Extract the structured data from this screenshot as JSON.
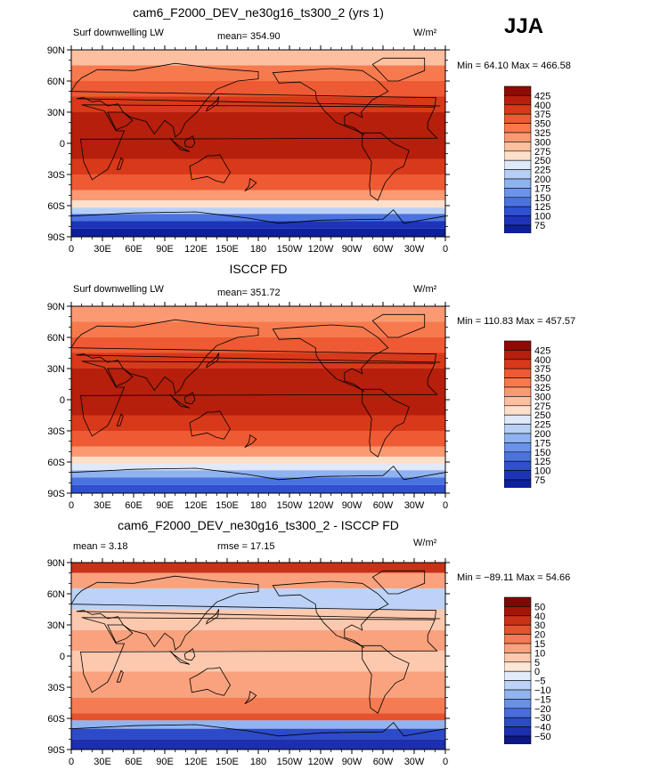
{
  "season": "JJA",
  "units_label": "W/m²",
  "lat_labels": [
    "90N",
    "60N",
    "30N",
    "0",
    "30S",
    "60S",
    "90S"
  ],
  "lon_labels": [
    "0",
    "30E",
    "60E",
    "90E",
    "120E",
    "150E",
    "180",
    "150W",
    "120W",
    "90W",
    "60W",
    "30W",
    "0"
  ],
  "colors": {
    "warm": [
      "#fde0cc",
      "#fcc0a0",
      "#fb9a72",
      "#f77a4f",
      "#ee5a33",
      "#d8391a",
      "#b51f0c",
      "#8e0a05"
    ],
    "cool": [
      "#dfe9fa",
      "#b8d0f6",
      "#8fb2f0",
      "#6b93ea",
      "#4b73e0",
      "#2f50cf",
      "#1d34b8",
      "#0e1f9c",
      "#07127a"
    ],
    "diff_warm": [
      "#fde8d8",
      "#fcc9ae",
      "#faa27e",
      "#f47b52",
      "#e5522d",
      "#c83216",
      "#a21608",
      "#7e0704"
    ],
    "diff_cool": [
      "#e3ecfb",
      "#bcd2f6",
      "#91b3ef",
      "#6a90e7",
      "#4a6ddc",
      "#2d4ac9",
      "#1c2fae",
      "#0d1785"
    ]
  },
  "panels": [
    {
      "title": "cam6_F2000_DEV_ne30g16_ts300_2 (yrs 1)",
      "variable": "Surf downwelling LW",
      "stat_left": "",
      "stat_center": "mean=  354.90",
      "minmax": "Min =   64.10  Max =  466.58",
      "colorbar": [
        "425",
        "400",
        "375",
        "350",
        "325",
        "300",
        "275",
        "250",
        "225",
        "200",
        "175",
        "150",
        "125",
        "100",
        "75"
      ]
    },
    {
      "title": "ISCCP FD",
      "variable": "Surf downwelling LW",
      "stat_left": "",
      "stat_center": "mean=  351.72",
      "minmax": "Min =  110.83  Max =  457.57",
      "colorbar": [
        "425",
        "400",
        "375",
        "350",
        "325",
        "300",
        "275",
        "250",
        "225",
        "200",
        "175",
        "150",
        "125",
        "100",
        "75"
      ]
    },
    {
      "title": "cam6_F2000_DEV_ne30g16_ts300_2 - ISCCP FD",
      "variable": "",
      "stat_left": "mean =     3.18",
      "stat_center": "rmse =    17.15",
      "minmax": "Min =  −89.11  Max =   54.66",
      "colorbar": [
        "50",
        "40",
        "30",
        "20",
        "15",
        "10",
        "5",
        "0",
        "−5",
        "−10",
        "−15",
        "−20",
        "−30",
        "−40",
        "−50"
      ]
    }
  ]
}
